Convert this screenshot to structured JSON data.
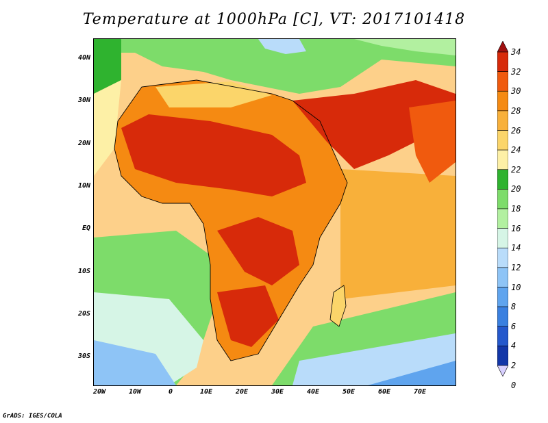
{
  "title": "Temperature at 1000hPa [C], VT: 2017101418",
  "credit": "GrADS: IGES/COLA",
  "map": {
    "region": "Africa, Middle East and western Indian Ocean",
    "lat_ticks": [
      "40N",
      "30N",
      "20N",
      "10N",
      "EQ",
      "10S",
      "20S",
      "30S"
    ],
    "lat_values": [
      40,
      30,
      20,
      10,
      0,
      -10,
      -20,
      -30
    ],
    "lon_ticks": [
      "20W",
      "10W",
      "0",
      "10E",
      "20E",
      "30E",
      "40E",
      "50E",
      "60E",
      "70E"
    ],
    "lon_values": [
      -20,
      -10,
      0,
      10,
      20,
      30,
      40,
      50,
      60,
      70
    ],
    "lat_range": [
      -36,
      45
    ],
    "lon_range": [
      -22,
      80
    ]
  },
  "colorbar": {
    "labels": [
      "34",
      "32",
      "30",
      "28",
      "26",
      "24",
      "22",
      "20",
      "18",
      "16",
      "14",
      "12",
      "10",
      "8",
      "6",
      "4",
      "2",
      "0"
    ],
    "colors": [
      "#a01010",
      "#d72a0a",
      "#f05a0e",
      "#f58a12",
      "#f8b03a",
      "#fbd56a",
      "#fdf0a6",
      "#2fb32f",
      "#7ddc6a",
      "#b2f0a0",
      "#d6f5e6",
      "#b9dcfa",
      "#8ec4f6",
      "#5fa4ee",
      "#3a80e0",
      "#2458cc",
      "#1236a8",
      "#0a1670"
    ],
    "units": "C"
  }
}
